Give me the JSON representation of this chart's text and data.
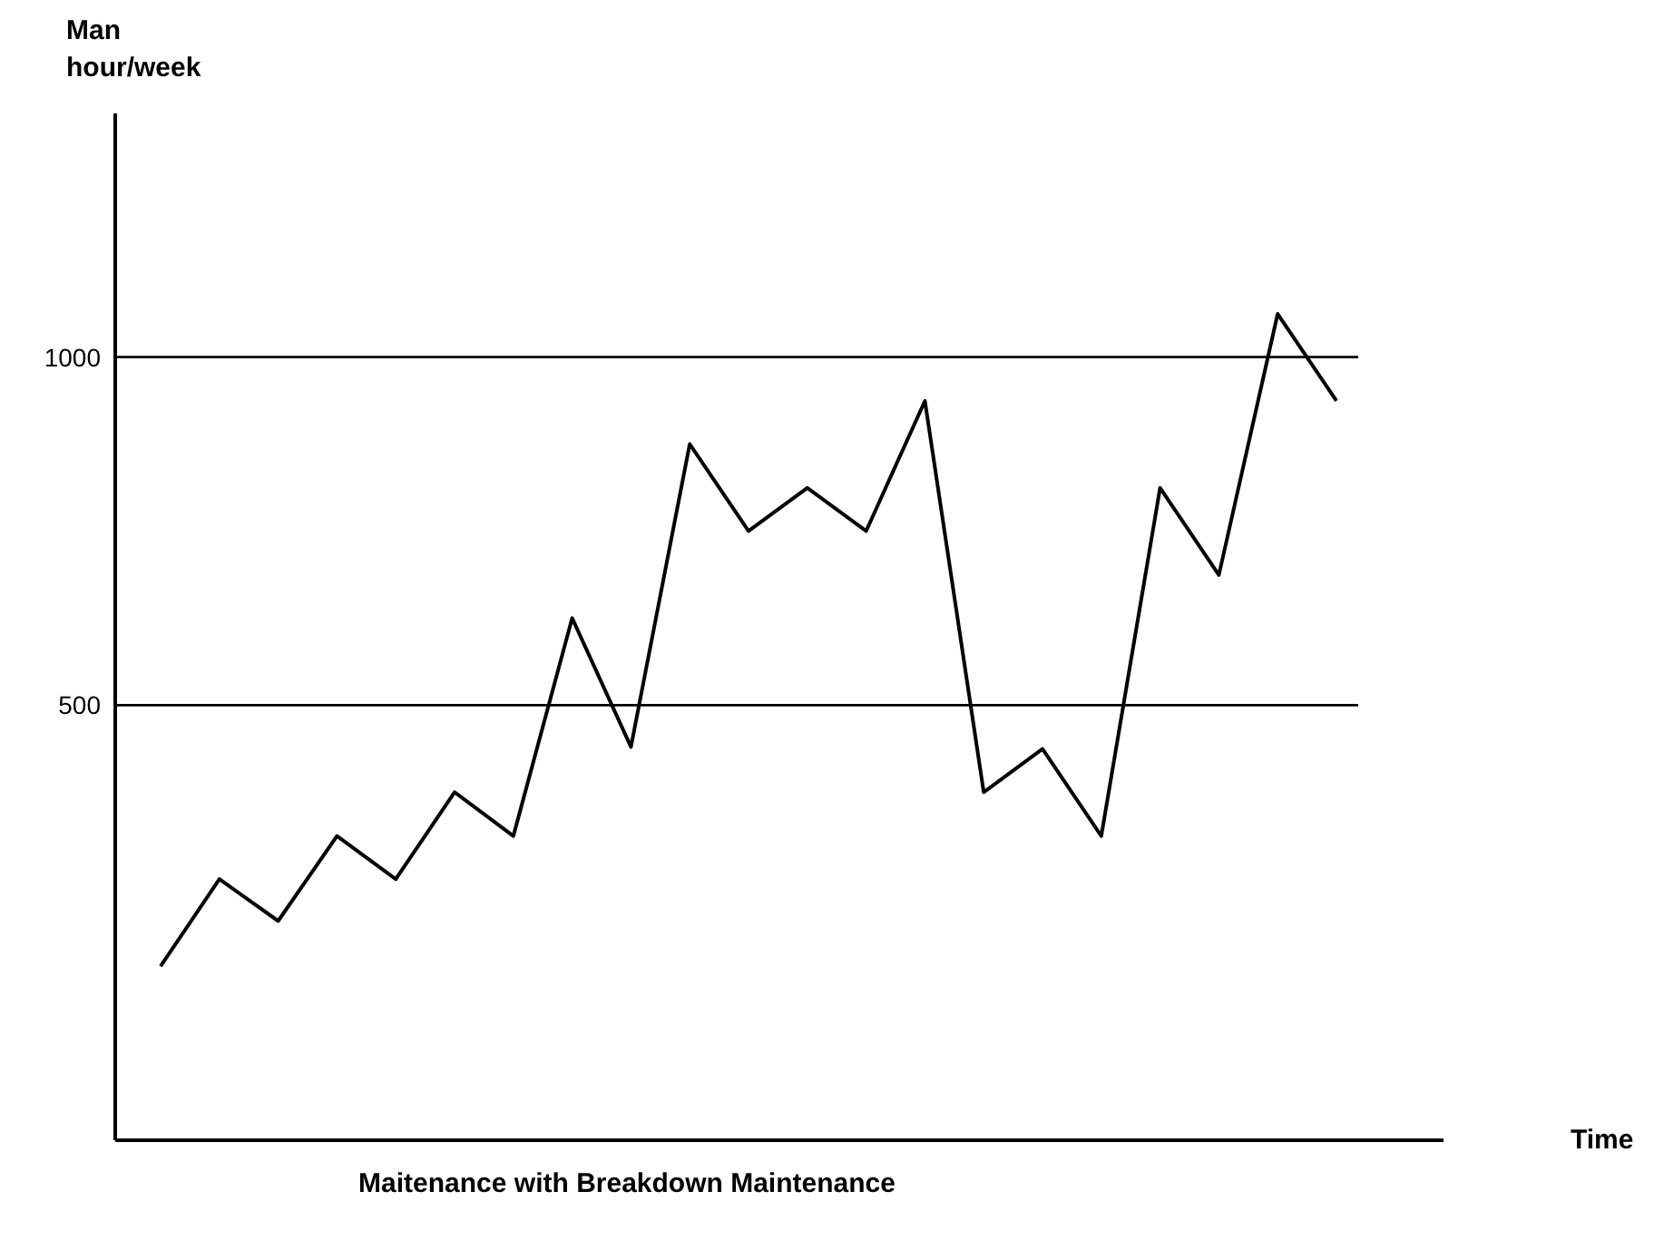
{
  "chart_data": {
    "type": "line",
    "title": "Maitenance with Breakdown Maintenance",
    "annotations": [
      "Time"
    ],
    "ylabel": "Man\nhour/week",
    "categories": [
      null,
      null,
      null,
      null,
      null,
      null,
      null,
      null,
      null,
      null,
      null,
      null,
      null,
      null,
      null,
      null,
      null,
      null,
      null,
      null,
      null
    ],
    "series": [
      {
        "color": "#000000",
        "values": [
          125,
          250,
          190,
          312,
          250,
          375,
          312,
          625,
          440,
          875,
          750,
          812,
          750,
          937,
          375,
          437,
          312,
          812,
          687,
          1062,
          937
        ]
      }
    ],
    "ylim": [
      -125,
      1350
    ],
    "yticks": [
      500,
      1000
    ],
    "grid": "y",
    "tick_labels": "y",
    "line_style": "solid"
  }
}
